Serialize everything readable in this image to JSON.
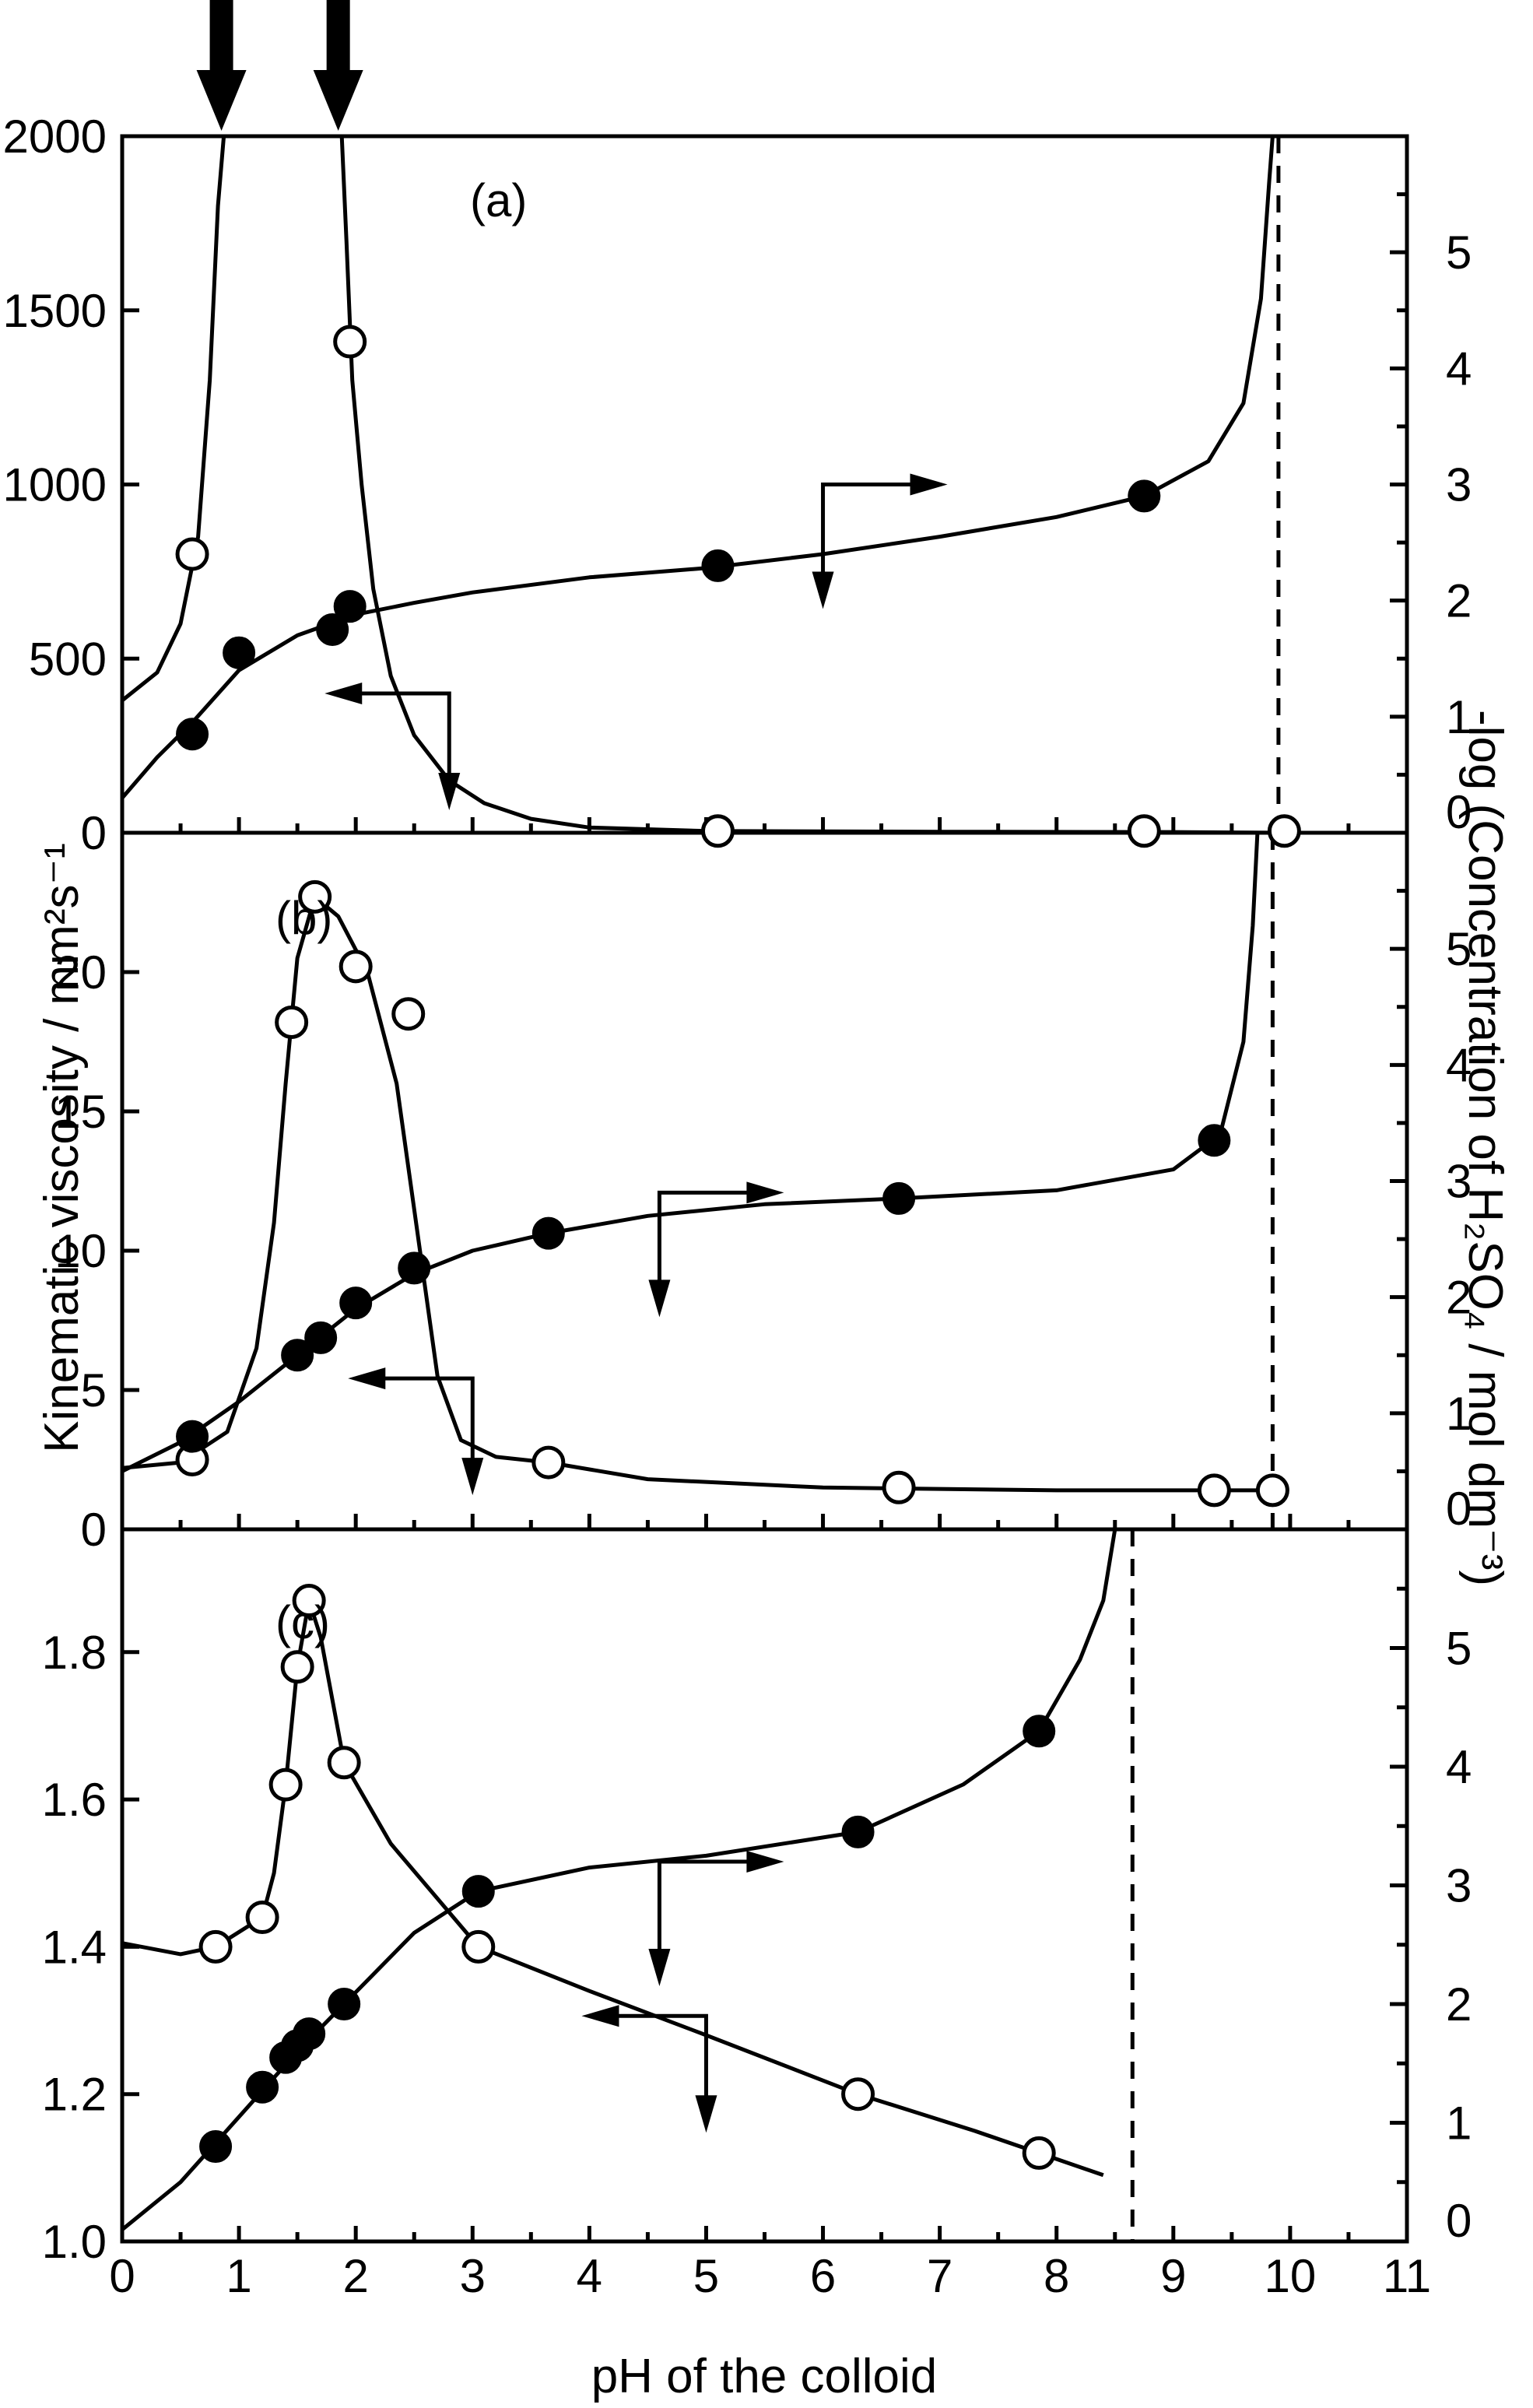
{
  "chart_data": {
    "type": "scatter",
    "xlabel": "pH of the colloid",
    "ylabel_left": "Kinematic viscosity / mm²s⁻¹",
    "ylabel_right": "-log (Concentration of H₂SO₄ / mol dm⁻³)",
    "x_ticks": [
      "0",
      "1",
      "2",
      "3",
      "4",
      "5",
      "6",
      "7",
      "8",
      "9",
      "10",
      "11"
    ],
    "xlim": [
      0,
      11
    ],
    "right_ylim": [
      0,
      6
    ],
    "right_ticks": [
      "0",
      "1",
      "2",
      "3",
      "4",
      "5"
    ],
    "top_arrows_x": [
      0.85,
      1.85
    ],
    "panels": [
      {
        "label": "(a)",
        "left_ylim": [
          0,
          2000
        ],
        "left_ticks": [
          "0",
          "500",
          "1000",
          "1500",
          "2000"
        ],
        "left_tick_values": [
          0,
          500,
          1000,
          1500,
          2000
        ],
        "viscosity_points": [
          [
            0.6,
            800
          ],
          [
            1.95,
            1410
          ],
          [
            5.1,
            5
          ],
          [
            8.75,
            5
          ],
          [
            9.95,
            5
          ]
        ],
        "viscosity_curve": [
          [
            0,
            380
          ],
          [
            0.3,
            460
          ],
          [
            0.5,
            600
          ],
          [
            0.65,
            850
          ],
          [
            0.75,
            1300
          ],
          [
            0.82,
            1800
          ],
          [
            0.87,
            2000
          ],
          [
            1.88,
            2000
          ],
          [
            1.92,
            1700
          ],
          [
            1.97,
            1300
          ],
          [
            2.05,
            1000
          ],
          [
            2.15,
            700
          ],
          [
            2.3,
            450
          ],
          [
            2.5,
            280
          ],
          [
            2.8,
            150
          ],
          [
            3.1,
            85
          ],
          [
            3.5,
            40
          ],
          [
            4.0,
            15
          ],
          [
            5.0,
            5
          ],
          [
            7.0,
            3
          ],
          [
            9.0,
            2
          ],
          [
            9.95,
            0
          ]
        ],
        "log_points": [
          [
            0.6,
            0.85
          ],
          [
            1.0,
            1.55
          ],
          [
            1.8,
            1.75
          ],
          [
            1.95,
            1.95
          ],
          [
            5.1,
            2.3
          ],
          [
            8.75,
            2.9
          ]
        ],
        "log_curve": [
          [
            0,
            0.3
          ],
          [
            0.3,
            0.65
          ],
          [
            0.6,
            0.95
          ],
          [
            1.0,
            1.4
          ],
          [
            1.5,
            1.7
          ],
          [
            2.0,
            1.88
          ],
          [
            2.5,
            1.98
          ],
          [
            3.0,
            2.07
          ],
          [
            4.0,
            2.2
          ],
          [
            5.0,
            2.28
          ],
          [
            6.0,
            2.4
          ],
          [
            7.0,
            2.55
          ],
          [
            8.0,
            2.72
          ],
          [
            8.75,
            2.9
          ],
          [
            9.3,
            3.2
          ],
          [
            9.6,
            3.7
          ],
          [
            9.75,
            4.6
          ],
          [
            9.82,
            5.6
          ],
          [
            9.85,
            6.0
          ]
        ],
        "dashed_x": 9.9,
        "arrow_right_anchor": [
          6.0,
          3.0
        ],
        "arrow_left_anchor": [
          2.8,
          1.2
        ]
      },
      {
        "label": "(b)",
        "left_ylim": [
          0,
          25
        ],
        "left_ticks": [
          "0",
          "5",
          "10",
          "15",
          "20"
        ],
        "left_tick_values": [
          0,
          5,
          10,
          15,
          20
        ],
        "viscosity_points": [
          [
            0.6,
            2.5
          ],
          [
            1.45,
            18.2
          ],
          [
            1.65,
            22.7
          ],
          [
            2.0,
            20.2
          ],
          [
            2.45,
            18.5
          ],
          [
            3.65,
            2.4
          ],
          [
            6.65,
            1.5
          ],
          [
            9.35,
            1.4
          ],
          [
            9.85,
            1.4
          ]
        ],
        "viscosity_curve": [
          [
            0,
            2.2
          ],
          [
            0.5,
            2.4
          ],
          [
            0.9,
            3.5
          ],
          [
            1.15,
            6.5
          ],
          [
            1.3,
            11
          ],
          [
            1.4,
            16
          ],
          [
            1.5,
            20.5
          ],
          [
            1.65,
            22.7
          ],
          [
            1.85,
            22
          ],
          [
            2.1,
            20
          ],
          [
            2.35,
            16
          ],
          [
            2.55,
            10
          ],
          [
            2.7,
            5.5
          ],
          [
            2.9,
            3.2
          ],
          [
            3.2,
            2.6
          ],
          [
            3.65,
            2.4
          ],
          [
            4.5,
            1.8
          ],
          [
            6.0,
            1.5
          ],
          [
            8.0,
            1.4
          ],
          [
            9.85,
            1.4
          ]
        ],
        "log_points": [
          [
            0.6,
            0.8
          ],
          [
            1.5,
            1.5
          ],
          [
            1.7,
            1.65
          ],
          [
            2.0,
            1.95
          ],
          [
            2.5,
            2.25
          ],
          [
            3.65,
            2.55
          ],
          [
            6.65,
            2.85
          ],
          [
            9.35,
            3.35
          ]
        ],
        "log_curve": [
          [
            0,
            0.5
          ],
          [
            0.5,
            0.75
          ],
          [
            1.0,
            1.1
          ],
          [
            1.5,
            1.5
          ],
          [
            2.0,
            1.9
          ],
          [
            2.5,
            2.2
          ],
          [
            3.0,
            2.4
          ],
          [
            3.65,
            2.55
          ],
          [
            4.5,
            2.7
          ],
          [
            5.5,
            2.8
          ],
          [
            6.65,
            2.85
          ],
          [
            8.0,
            2.92
          ],
          [
            9.0,
            3.1
          ],
          [
            9.4,
            3.4
          ],
          [
            9.6,
            4.2
          ],
          [
            9.68,
            5.2
          ],
          [
            9.72,
            6.0
          ]
        ],
        "dashed_x": 9.85,
        "arrow_right_anchor": [
          4.6,
          2.9
        ],
        "arrow_left_anchor": [
          3.0,
          1.3
        ]
      },
      {
        "label": "(c)",
        "left_ylim": [
          1.0,
          1.9667
        ],
        "left_ticks": [
          "1.0",
          "1.2",
          "1.4",
          "1.6",
          "1.8"
        ],
        "left_tick_values": [
          1.0,
          1.2,
          1.4,
          1.6,
          1.8
        ],
        "viscosity_points": [
          [
            0.8,
            1.4
          ],
          [
            1.2,
            1.44
          ],
          [
            1.4,
            1.62
          ],
          [
            1.5,
            1.78
          ],
          [
            1.6,
            1.87
          ],
          [
            1.9,
            1.65
          ],
          [
            3.05,
            1.4
          ],
          [
            6.3,
            1.2
          ],
          [
            7.85,
            1.12
          ]
        ],
        "viscosity_curve": [
          [
            0,
            1.405
          ],
          [
            0.5,
            1.39
          ],
          [
            0.8,
            1.4
          ],
          [
            1.2,
            1.44
          ],
          [
            1.3,
            1.5
          ],
          [
            1.4,
            1.62
          ],
          [
            1.5,
            1.78
          ],
          [
            1.6,
            1.87
          ],
          [
            1.7,
            1.82
          ],
          [
            1.9,
            1.65
          ],
          [
            2.3,
            1.54
          ],
          [
            3.05,
            1.4
          ],
          [
            4.0,
            1.34
          ],
          [
            5.0,
            1.28
          ],
          [
            6.3,
            1.2
          ],
          [
            7.3,
            1.15
          ],
          [
            7.85,
            1.12
          ],
          [
            8.4,
            1.09
          ]
        ],
        "log_points": [
          [
            0.8,
            0.8
          ],
          [
            1.2,
            1.3
          ],
          [
            1.4,
            1.55
          ],
          [
            1.5,
            1.65
          ],
          [
            1.6,
            1.75
          ],
          [
            1.9,
            2.0
          ],
          [
            3.05,
            2.95
          ],
          [
            6.3,
            3.45
          ],
          [
            7.85,
            4.3
          ]
        ],
        "log_curve": [
          [
            0,
            0.1
          ],
          [
            0.5,
            0.5
          ],
          [
            1.0,
            1.05
          ],
          [
            1.5,
            1.6
          ],
          [
            2.0,
            2.1
          ],
          [
            2.5,
            2.6
          ],
          [
            3.05,
            2.95
          ],
          [
            4.0,
            3.15
          ],
          [
            5.0,
            3.25
          ],
          [
            6.3,
            3.45
          ],
          [
            7.2,
            3.85
          ],
          [
            7.85,
            4.3
          ],
          [
            8.2,
            4.9
          ],
          [
            8.4,
            5.4
          ],
          [
            8.5,
            6.0
          ]
        ],
        "dashed_x": 8.65,
        "arrow_right_anchor": [
          4.6,
          3.2
        ],
        "arrow_left_anchor": [
          5.0,
          1.9
        ]
      }
    ]
  }
}
